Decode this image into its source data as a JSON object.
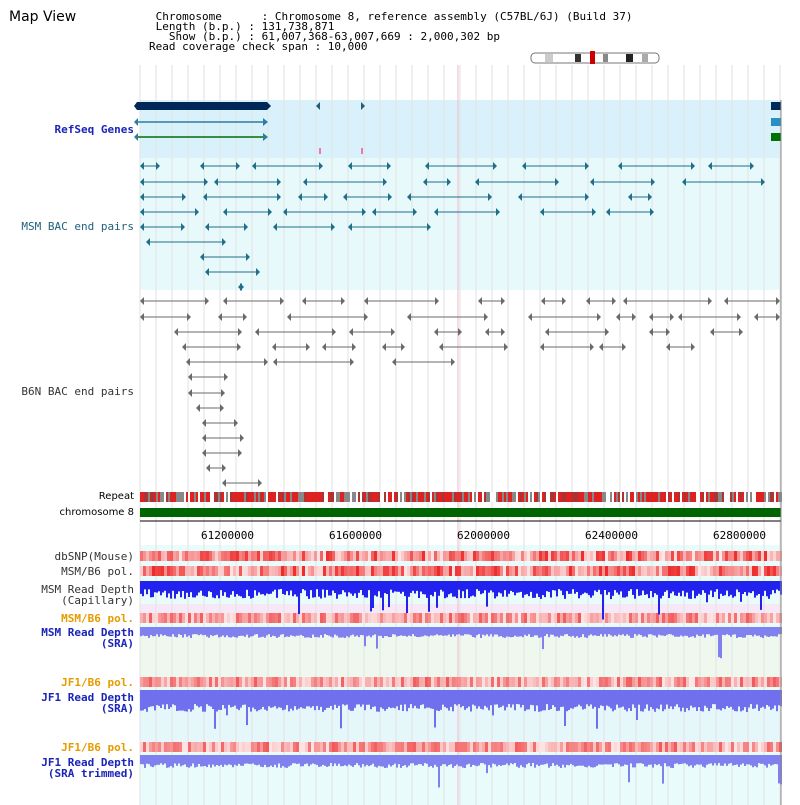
{
  "header": {
    "title": "Map View",
    "info_lines": [
      " Chromosome      : Chromosome 8, reference assembly (C57BL/6J) (Build 37)",
      " Length (b.p.) : 131,738,871",
      "   Show (b.p.) : 61,007,368-63,007,669 : 2,000,302 bp",
      "Read coverage check span : 10,000"
    ]
  },
  "tracks": {
    "refseq": "RefSeq Genes",
    "msm_bac": "MSM BAC end pairs",
    "b6n_bac": "B6N BAC end pairs",
    "repeat": "Repeat",
    "chromosome": "chromosome 8",
    "dbsnp": "dbSNP(Mouse)",
    "msm_b6_pol_1": "MSM/B6 pol.",
    "msm_read_cap": "MSM Read Depth\n(Capillary)",
    "msm_b6_pol_2": "MSM/B6 pol.",
    "msm_read_sra": "MSM Read Depth\n(SRA)",
    "jf1_b6_pol_1": "JF1/B6 pol.",
    "jf1_read_sra": "JF1 Read Depth\n(SRA)",
    "jf1_b6_pol_2": "JF1/B6 pol.",
    "jf1_read_trim": "JF1 Read Depth\n(SRA trimmed)"
  },
  "axis": {
    "ticks": [
      "61200000",
      "61600000",
      "62000000",
      "62400000",
      "62800000"
    ]
  },
  "colors": {
    "refseq_bg": "#d9f1fb",
    "bac_bg": "#e8f9fb",
    "chrom": "#006400",
    "depth_blue": "#2222ee",
    "depth_light": "#8888ee",
    "snp_red": "#ee2222"
  }
}
